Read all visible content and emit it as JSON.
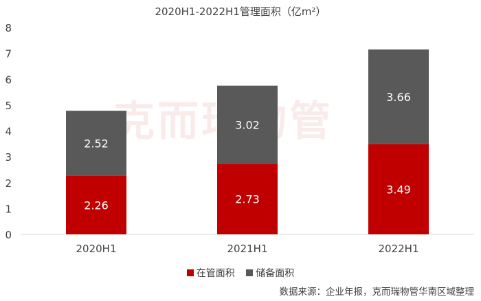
{
  "chart_data": {
    "type": "bar",
    "stacked": true,
    "title": "2020H1-2022H1管理面积（亿m²）",
    "categories": [
      "2020H1",
      "2021H1",
      "2022H1"
    ],
    "series": [
      {
        "name": "在管面积",
        "values": [
          2.26,
          2.73,
          3.49
        ],
        "color": "#c00000",
        "label_color": "#ffffff"
      },
      {
        "name": "储备面积",
        "values": [
          2.52,
          3.02,
          3.66
        ],
        "color": "#595959",
        "label_color": "#ffffff"
      }
    ],
    "ylim": [
      0,
      8
    ],
    "yticks": [
      0,
      1,
      2,
      3,
      4,
      5,
      6,
      7,
      8
    ],
    "grid": false,
    "legend": "bottom",
    "xlabel": "",
    "ylabel": ""
  },
  "watermark": "克而瑞物管",
  "source": "数据来源：企业年报，克而瑞物管华南区域整理"
}
